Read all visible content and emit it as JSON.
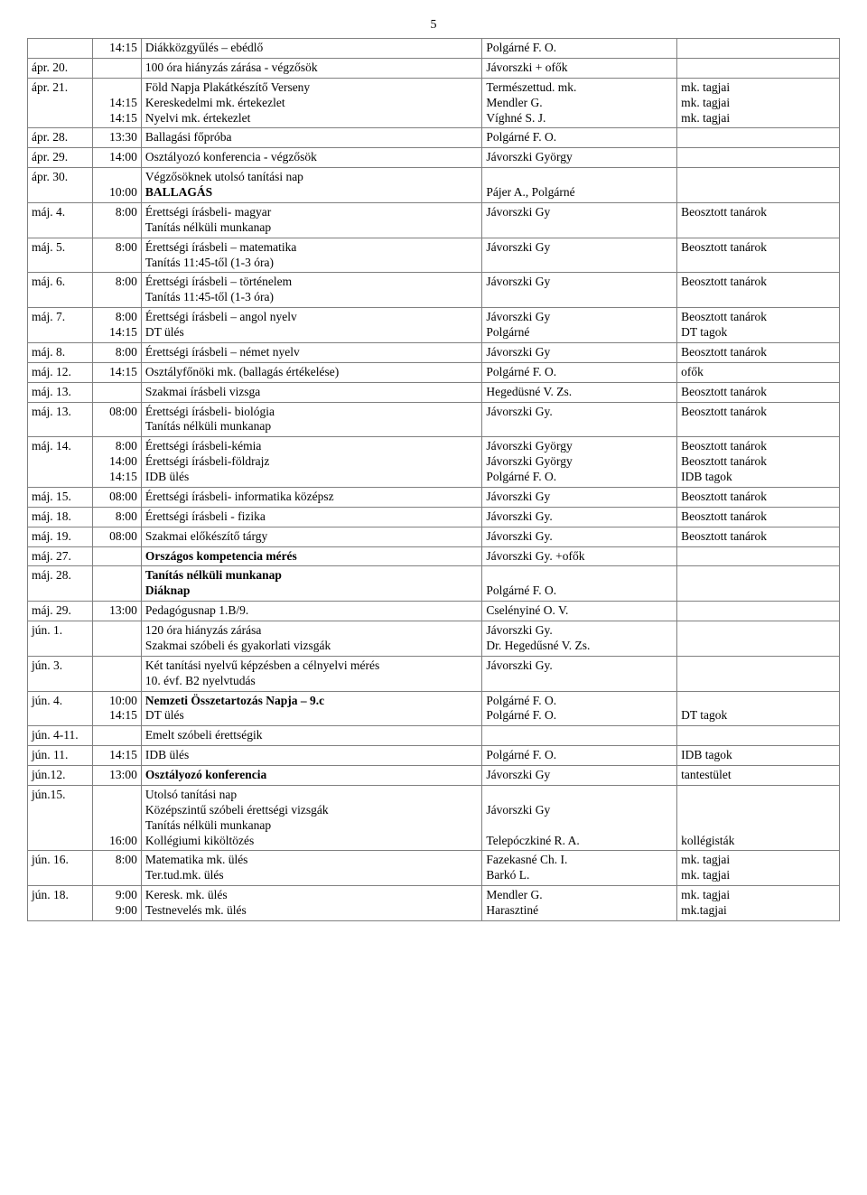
{
  "page_number": "5",
  "rows": [
    {
      "date": "",
      "time": "14:15",
      "event": "Diákközgyűlés – ebédlő",
      "resp": "Polgárné F. O.",
      "note": ""
    },
    {
      "date": "ápr. 20.",
      "time": "",
      "event": "100 óra hiányzás zárása - végzősök",
      "resp": "Jávorszki + ofők",
      "note": ""
    },
    {
      "date": "ápr. 21.",
      "time": [
        "",
        "14:15",
        "14:15"
      ],
      "event": [
        "Föld Napja Plakátkészítő Verseny",
        "Kereskedelmi mk. értekezlet",
        "Nyelvi mk. értekezlet"
      ],
      "resp": [
        "Természettud. mk.",
        "Mendler G.",
        "Víghné S. J."
      ],
      "note": [
        "mk. tagjai",
        "mk. tagjai",
        "mk. tagjai"
      ]
    },
    {
      "date": "ápr. 28.",
      "time": "13:30",
      "event": "Ballagási főpróba",
      "resp": "Polgárné F. O.",
      "note": ""
    },
    {
      "date": "ápr. 29.",
      "time": "14:00",
      "event": "Osztályozó konferencia - végzősök",
      "resp": "Jávorszki György",
      "note": ""
    },
    {
      "date": "ápr. 30.",
      "time": [
        "",
        "10:00"
      ],
      "event": [
        "Végzősöknek utolsó tanítási nap",
        "<b>BALLAGÁS</b>"
      ],
      "resp": [
        "",
        "Pájer A., Polgárné"
      ],
      "note": ""
    },
    {
      "date": "máj. 4.",
      "time": "8:00",
      "event": [
        "Érettségi írásbeli- magyar",
        "Tanítás nélküli munkanap"
      ],
      "resp": "Jávorszki Gy",
      "note": "Beosztott tanárok"
    },
    {
      "date": "máj. 5.",
      "time": "8:00",
      "event": [
        "Érettségi írásbeli – matematika",
        "Tanítás 11:45-től (1-3 óra)"
      ],
      "resp": "Jávorszki Gy",
      "note": "Beosztott tanárok"
    },
    {
      "date": "máj. 6.",
      "time": "8:00",
      "event": [
        "Érettségi írásbeli – történelem",
        "Tanítás 11:45-től (1-3 óra)"
      ],
      "resp": "Jávorszki Gy",
      "note": "Beosztott tanárok"
    },
    {
      "date": "máj. 7.",
      "time": [
        "8:00",
        "14:15"
      ],
      "event": [
        "Érettségi írásbeli – angol nyelv",
        "DT ülés"
      ],
      "resp": [
        "Jávorszki Gy",
        "Polgárné"
      ],
      "note": [
        "Beosztott tanárok",
        "DT tagok"
      ]
    },
    {
      "date": "máj. 8.",
      "time": "8:00",
      "event": "Érettségi írásbeli – német nyelv",
      "resp": "Jávorszki Gy",
      "note": "Beosztott tanárok"
    },
    {
      "date": "máj. 12.",
      "time": "14:15",
      "event": "Osztályfőnöki mk. (ballagás értékelése)",
      "resp": "Polgárné F. O.",
      "note": "ofők"
    },
    {
      "date": "máj. 13.",
      "time": "",
      "event": "Szakmai írásbeli vizsga",
      "resp": "Hegedüsné V. Zs.",
      "note": "Beosztott tanárok"
    },
    {
      "date": "máj. 13.",
      "time": "08:00",
      "event": [
        "Érettségi írásbeli- biológia",
        "Tanítás nélküli munkanap"
      ],
      "resp": "Jávorszki Gy.",
      "note": "Beosztott tanárok"
    },
    {
      "date": "máj. 14.",
      "time": [
        "8:00",
        "14:00",
        "14:15"
      ],
      "event": [
        "Érettségi írásbeli-kémia",
        "Érettségi írásbeli-földrajz",
        "IDB ülés"
      ],
      "resp": [
        "Jávorszki György",
        "Jávorszki György",
        "Polgárné F. O."
      ],
      "note": [
        "Beosztott tanárok",
        "Beosztott tanárok",
        "IDB tagok"
      ]
    },
    {
      "date": "máj. 15.",
      "time": "08:00",
      "event": "Érettségi írásbeli- informatika középsz",
      "resp": "Jávorszki Gy",
      "note": "Beosztott tanárok"
    },
    {
      "date": "máj. 18.",
      "time": "8:00",
      "event": "Érettségi írásbeli - fizika",
      "resp": "Jávorszki Gy.",
      "note": "Beosztott tanárok"
    },
    {
      "date": "máj. 19.",
      "time": "08:00",
      "event": "Szakmai előkészítő tárgy",
      "resp": "Jávorszki Gy.",
      "note": "Beosztott tanárok"
    },
    {
      "date": "máj. 27.",
      "time": "",
      "event": "<b>Országos kompetencia mérés</b>",
      "resp": "Jávorszki Gy. +ofők",
      "note": ""
    },
    {
      "date": "máj. 28.",
      "time": "",
      "event": [
        "<b>Tanítás nélküli munkanap</b>",
        "<b>Diáknap</b>"
      ],
      "resp": [
        "",
        "Polgárné F. O."
      ],
      "note": ""
    },
    {
      "date": "máj. 29.",
      "time": "13:00",
      "event": "Pedagógusnap 1.B/9.",
      "resp": "Cselényiné O. V.",
      "note": ""
    },
    {
      "date": "jún. 1.",
      "time": "",
      "event": [
        "120 óra hiányzás zárása",
        "Szakmai szóbeli és gyakorlati vizsgák"
      ],
      "resp": [
        "Jávorszki Gy.",
        "Dr. Hegedűsné V. Zs."
      ],
      "note": ""
    },
    {
      "date": "jún. 3.",
      "time": "",
      "event": [
        "Két tanítási nyelvű képzésben a célnyelvi mérés",
        "10. évf. B2 nyelvtudás"
      ],
      "resp": "Jávorszki Gy.",
      "note": ""
    },
    {
      "date": "jún. 4.",
      "time": [
        "10:00",
        "14:15"
      ],
      "event": [
        "<b>Nemzeti Összetartozás Napja – 9.c</b>",
        "DT ülés"
      ],
      "resp": [
        "Polgárné F. O.",
        "Polgárné F. O."
      ],
      "note": [
        "",
        "DT tagok"
      ]
    },
    {
      "date": "jún. 4-11.",
      "time": "",
      "event": "Emelt szóbeli érettségik",
      "resp": "",
      "note": ""
    },
    {
      "date": "jún. 11.",
      "time": "14:15",
      "event": "IDB ülés",
      "resp": "Polgárné F. O.",
      "note": "IDB tagok"
    },
    {
      "date": "jún.12.",
      "time": "13:00",
      "event": "<b>Osztályozó konferencia</b>",
      "resp": "Jávorszki Gy",
      "note": "tantestület"
    },
    {
      "date": "jún.15.",
      "time": [
        "",
        "",
        "",
        "16:00"
      ],
      "event": [
        "Utolsó tanítási nap",
        "Középszintű szóbeli érettségi vizsgák",
        "Tanítás nélküli munkanap",
        "Kollégiumi kiköltözés"
      ],
      "resp": [
        "",
        "Jávorszki Gy",
        "",
        "Telepóczkiné R. A."
      ],
      "note": [
        "",
        "",
        "",
        "kollégisták"
      ]
    },
    {
      "date": "jún. 16.",
      "time": "8:00",
      "event": [
        "Matematika mk. ülés",
        "Ter.tud.mk. ülés"
      ],
      "resp": [
        "Fazekasné Ch. I.",
        "Barkó L."
      ],
      "note": [
        "mk. tagjai",
        "mk. tagjai"
      ]
    },
    {
      "date": "jún. 18.",
      "time": [
        "9:00",
        "9:00"
      ],
      "event": [
        "Keresk. mk. ülés",
        "Testnevelés mk. ülés"
      ],
      "resp": [
        "Mendler G.",
        "Harasztiné"
      ],
      "note": [
        "mk. tagjai",
        "mk.tagjai"
      ]
    }
  ]
}
